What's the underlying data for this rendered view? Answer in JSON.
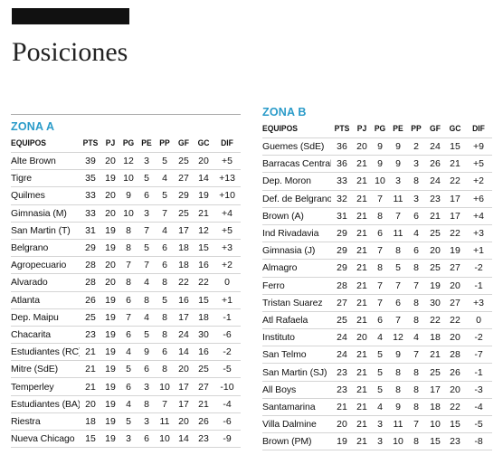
{
  "page": {
    "title": "Posiciones"
  },
  "headers": [
    "EQUIPOS",
    "PTS",
    "PJ",
    "PG",
    "PE",
    "PP",
    "GF",
    "GC",
    "DIF"
  ],
  "zona_a": {
    "title": "ZONA A",
    "rows": [
      {
        "team": "Alte Brown",
        "pts": "39",
        "pj": "20",
        "pg": "12",
        "pe": "3",
        "pp": "5",
        "gf": "25",
        "gc": "20",
        "dif": "+5"
      },
      {
        "team": "Tigre",
        "pts": "35",
        "pj": "19",
        "pg": "10",
        "pe": "5",
        "pp": "4",
        "gf": "27",
        "gc": "14",
        "dif": "+13"
      },
      {
        "team": "Quilmes",
        "pts": "33",
        "pj": "20",
        "pg": "9",
        "pe": "6",
        "pp": "5",
        "gf": "29",
        "gc": "19",
        "dif": "+10"
      },
      {
        "team": "Gimnasia (M)",
        "pts": "33",
        "pj": "20",
        "pg": "10",
        "pe": "3",
        "pp": "7",
        "gf": "25",
        "gc": "21",
        "dif": "+4"
      },
      {
        "team": "San Martin (T)",
        "pts": "31",
        "pj": "19",
        "pg": "8",
        "pe": "7",
        "pp": "4",
        "gf": "17",
        "gc": "12",
        "dif": "+5"
      },
      {
        "team": "Belgrano",
        "pts": "29",
        "pj": "19",
        "pg": "8",
        "pe": "5",
        "pp": "6",
        "gf": "18",
        "gc": "15",
        "dif": "+3"
      },
      {
        "team": "Agropecuario",
        "pts": "28",
        "pj": "20",
        "pg": "7",
        "pe": "7",
        "pp": "6",
        "gf": "18",
        "gc": "16",
        "dif": "+2"
      },
      {
        "team": "Alvarado",
        "pts": "28",
        "pj": "20",
        "pg": "8",
        "pe": "4",
        "pp": "8",
        "gf": "22",
        "gc": "22",
        "dif": "0"
      },
      {
        "team": "Atlanta",
        "pts": "26",
        "pj": "19",
        "pg": "6",
        "pe": "8",
        "pp": "5",
        "gf": "16",
        "gc": "15",
        "dif": "+1"
      },
      {
        "team": "Dep. Maipu",
        "pts": "25",
        "pj": "19",
        "pg": "7",
        "pe": "4",
        "pp": "8",
        "gf": "17",
        "gc": "18",
        "dif": "-1"
      },
      {
        "team": "Chacarita",
        "pts": "23",
        "pj": "19",
        "pg": "6",
        "pe": "5",
        "pp": "8",
        "gf": "24",
        "gc": "30",
        "dif": "-6"
      },
      {
        "team": "Estudiantes (RC)",
        "pts": "21",
        "pj": "19",
        "pg": "4",
        "pe": "9",
        "pp": "6",
        "gf": "14",
        "gc": "16",
        "dif": "-2"
      },
      {
        "team": "Mitre (SdE)",
        "pts": "21",
        "pj": "19",
        "pg": "5",
        "pe": "6",
        "pp": "8",
        "gf": "20",
        "gc": "25",
        "dif": "-5"
      },
      {
        "team": "Temperley",
        "pts": "21",
        "pj": "19",
        "pg": "6",
        "pe": "3",
        "pp": "10",
        "gf": "17",
        "gc": "27",
        "dif": "-10"
      },
      {
        "team": "Estudiantes (BA)",
        "pts": "20",
        "pj": "19",
        "pg": "4",
        "pe": "8",
        "pp": "7",
        "gf": "17",
        "gc": "21",
        "dif": "-4"
      },
      {
        "team": "Riestra",
        "pts": "18",
        "pj": "19",
        "pg": "5",
        "pe": "3",
        "pp": "11",
        "gf": "20",
        "gc": "26",
        "dif": "-6"
      },
      {
        "team": "Nueva Chicago",
        "pts": "15",
        "pj": "19",
        "pg": "3",
        "pe": "6",
        "pp": "10",
        "gf": "14",
        "gc": "23",
        "dif": "-9"
      }
    ]
  },
  "zona_b": {
    "title": "ZONA B",
    "rows": [
      {
        "team": "Guemes (SdE)",
        "pts": "36",
        "pj": "20",
        "pg": "9",
        "pe": "9",
        "pp": "2",
        "gf": "24",
        "gc": "15",
        "dif": "+9"
      },
      {
        "team": "Barracas Central",
        "pts": "36",
        "pj": "21",
        "pg": "9",
        "pe": "9",
        "pp": "3",
        "gf": "26",
        "gc": "21",
        "dif": "+5"
      },
      {
        "team": "Dep. Moron",
        "pts": "33",
        "pj": "21",
        "pg": "10",
        "pe": "3",
        "pp": "8",
        "gf": "24",
        "gc": "22",
        "dif": "+2"
      },
      {
        "team": "Def. de Belgrano",
        "pts": "32",
        "pj": "21",
        "pg": "7",
        "pe": "11",
        "pp": "3",
        "gf": "23",
        "gc": "17",
        "dif": "+6"
      },
      {
        "team": "Brown (A)",
        "pts": "31",
        "pj": "21",
        "pg": "8",
        "pe": "7",
        "pp": "6",
        "gf": "21",
        "gc": "17",
        "dif": "+4"
      },
      {
        "team": "Ind Rivadavia",
        "pts": "29",
        "pj": "21",
        "pg": "6",
        "pe": "11",
        "pp": "4",
        "gf": "25",
        "gc": "22",
        "dif": "+3"
      },
      {
        "team": "Gimnasia (J)",
        "pts": "29",
        "pj": "21",
        "pg": "7",
        "pe": "8",
        "pp": "6",
        "gf": "20",
        "gc": "19",
        "dif": "+1"
      },
      {
        "team": "Almagro",
        "pts": "29",
        "pj": "21",
        "pg": "8",
        "pe": "5",
        "pp": "8",
        "gf": "25",
        "gc": "27",
        "dif": "-2"
      },
      {
        "team": "Ferro",
        "pts": "28",
        "pj": "21",
        "pg": "7",
        "pe": "7",
        "pp": "7",
        "gf": "19",
        "gc": "20",
        "dif": "-1"
      },
      {
        "team": "Tristan Suarez",
        "pts": "27",
        "pj": "21",
        "pg": "7",
        "pe": "6",
        "pp": "8",
        "gf": "30",
        "gc": "27",
        "dif": "+3"
      },
      {
        "team": "Atl Rafaela",
        "pts": "25",
        "pj": "21",
        "pg": "6",
        "pe": "7",
        "pp": "8",
        "gf": "22",
        "gc": "22",
        "dif": "0"
      },
      {
        "team": "Instituto",
        "pts": "24",
        "pj": "20",
        "pg": "4",
        "pe": "12",
        "pp": "4",
        "gf": "18",
        "gc": "20",
        "dif": "-2"
      },
      {
        "team": "San Telmo",
        "pts": "24",
        "pj": "21",
        "pg": "5",
        "pe": "9",
        "pp": "7",
        "gf": "21",
        "gc": "28",
        "dif": "-7"
      },
      {
        "team": "San Martin (SJ)",
        "pts": "23",
        "pj": "21",
        "pg": "5",
        "pe": "8",
        "pp": "8",
        "gf": "25",
        "gc": "26",
        "dif": "-1"
      },
      {
        "team": "All Boys",
        "pts": "23",
        "pj": "21",
        "pg": "5",
        "pe": "8",
        "pp": "8",
        "gf": "17",
        "gc": "20",
        "dif": "-3"
      },
      {
        "team": "Santamarina",
        "pts": "21",
        "pj": "21",
        "pg": "4",
        "pe": "9",
        "pp": "8",
        "gf": "18",
        "gc": "22",
        "dif": "-4"
      },
      {
        "team": "Villa Dalmine",
        "pts": "20",
        "pj": "21",
        "pg": "3",
        "pe": "11",
        "pp": "7",
        "gf": "10",
        "gc": "15",
        "dif": "-5"
      },
      {
        "team": "Brown (PM)",
        "pts": "19",
        "pj": "21",
        "pg": "3",
        "pe": "10",
        "pp": "8",
        "gf": "15",
        "gc": "23",
        "dif": "-8"
      }
    ]
  }
}
